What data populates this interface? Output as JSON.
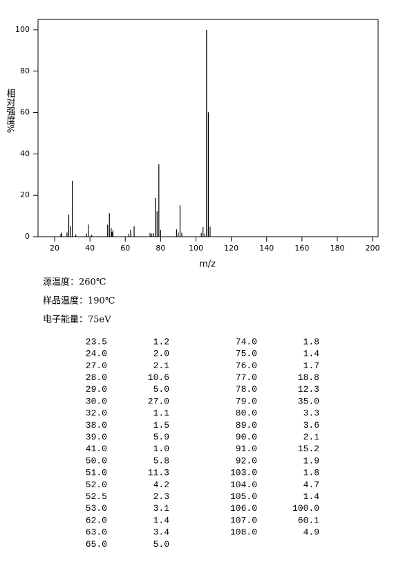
{
  "chart_data": {
    "type": "bar",
    "y_label": "相对强度%",
    "x_label": "m/z",
    "x": [
      23.5,
      24,
      27,
      28,
      29,
      30,
      32,
      38,
      39,
      41,
      50,
      51,
      52,
      52.5,
      53,
      62,
      63,
      65,
      74,
      75,
      76,
      77,
      78,
      79,
      80,
      89,
      90,
      91,
      92,
      103,
      104,
      105,
      106,
      107,
      108
    ],
    "x_labels": [
      "23.5",
      "24.0",
      "27.0",
      "28.0",
      "29.0",
      "30.0",
      "32.0",
      "38.0",
      "39.0",
      "41.0",
      "50.0",
      "51.0",
      "52.0",
      "52.5",
      "53.0",
      "62.0",
      "63.0",
      "65.0",
      "74.0",
      "75.0",
      "76.0",
      "77.0",
      "78.0",
      "79.0",
      "80.0",
      "89.0",
      "90.0",
      "91.0",
      "92.0",
      "103.0",
      "104.0",
      "105.0",
      "106.0",
      "107.0",
      "108.0"
    ],
    "values": [
      1.2,
      2.0,
      2.1,
      10.6,
      5.0,
      27.0,
      1.1,
      1.5,
      5.9,
      1.0,
      5.8,
      11.3,
      4.2,
      2.3,
      3.1,
      1.4,
      3.4,
      5.0,
      1.8,
      1.4,
      1.7,
      18.8,
      12.3,
      35.0,
      3.3,
      3.6,
      2.1,
      15.2,
      1.9,
      1.8,
      4.7,
      1.4,
      100.0,
      60.1,
      4.9
    ],
    "value_labels": [
      "1.2",
      "2.0",
      "2.1",
      "10.6",
      "5.0",
      "27.0",
      "1.1",
      "1.5",
      "5.9",
      "1.0",
      "5.8",
      "11.3",
      "4.2",
      "2.3",
      "3.1",
      "1.4",
      "3.4",
      "5.0",
      "1.8",
      "1.4",
      "1.7",
      "18.8",
      "12.3",
      "35.0",
      "3.3",
      "3.6",
      "2.1",
      "15.2",
      "1.9",
      "1.8",
      "4.7",
      "1.4",
      "100.0",
      "60.1",
      "4.9"
    ],
    "color": "#000000",
    "xlim": [
      10.6,
      203.1
    ],
    "xticks": [
      20,
      40,
      60,
      80,
      100,
      120,
      140,
      160,
      180,
      200
    ],
    "ylim": [
      0,
      105
    ],
    "yticks": [
      0,
      20,
      40,
      60,
      80,
      100
    ]
  },
  "info": [
    "源温度：260℃",
    "样品温度：190℃",
    "电子能量：75eV"
  ]
}
